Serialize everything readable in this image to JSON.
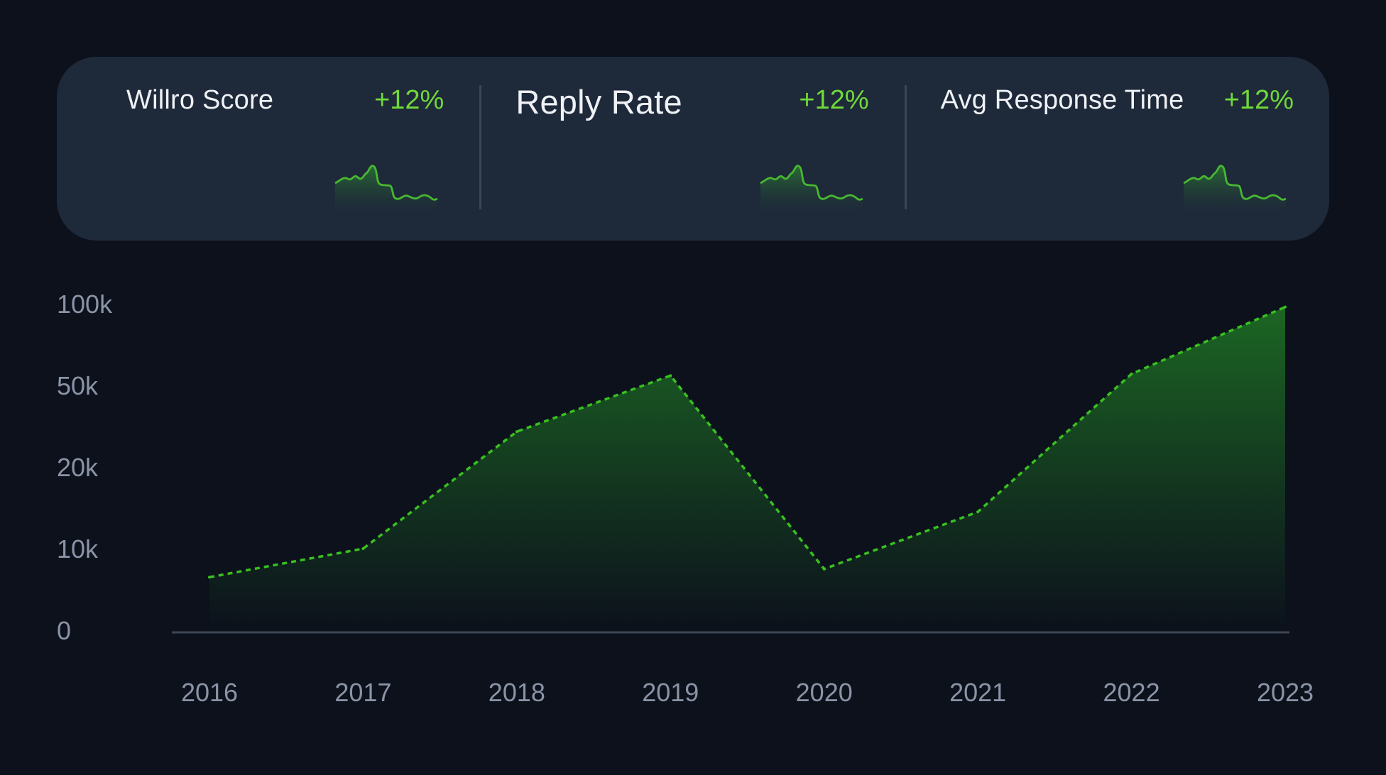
{
  "stats": [
    {
      "title": "Willro Score",
      "change": "+12%"
    },
    {
      "title": "Reply Rate",
      "change": "+12%"
    },
    {
      "title": "Avg Response Time",
      "change": "+12%"
    }
  ],
  "colors": {
    "background": "#0c111c",
    "card": "#1e2939",
    "accent": "#6fd93a",
    "line": "#39c020",
    "axis_text": "#8a94a6"
  },
  "chart_data": {
    "type": "area",
    "categories": [
      "2016",
      "2017",
      "2018",
      "2019",
      "2020",
      "2021",
      "2022",
      "2023"
    ],
    "yticks": [
      "0",
      "10k",
      "20k",
      "50k",
      "100k"
    ],
    "values": [
      6500,
      10000,
      33000,
      56000,
      7500,
      14500,
      57000,
      98000
    ],
    "ylim": [
      0,
      100000
    ],
    "y_scale": "nonlinear (ticks 0, 10k, 20k, 50k, 100k equally spaced)",
    "line_style": "dashed",
    "grid": false,
    "legend": "none",
    "title": "",
    "xlabel": "",
    "ylabel": ""
  }
}
